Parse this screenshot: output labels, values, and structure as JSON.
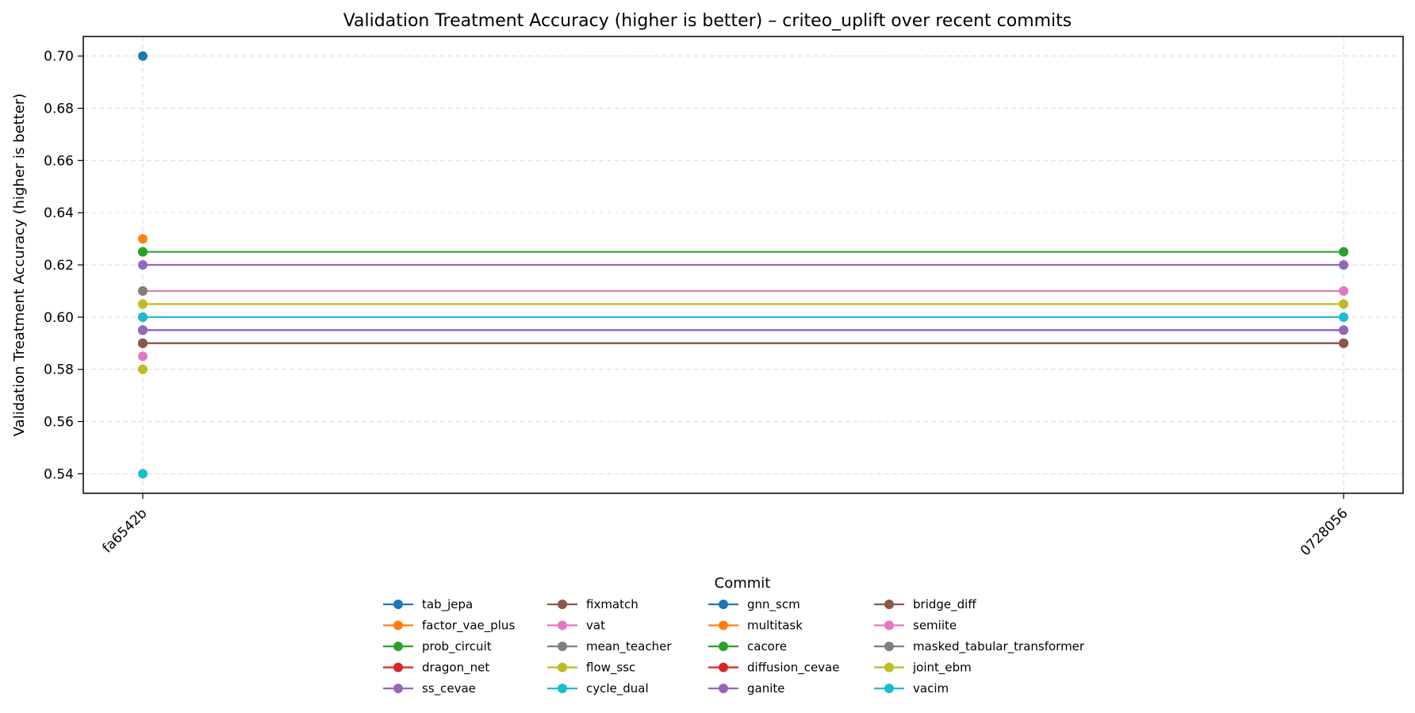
{
  "chart_data": {
    "type": "line",
    "title": "Validation Treatment Accuracy (higher is better) – criteo_uplift over recent commits",
    "xlabel": "",
    "ylabel": "Validation Treatment Accuracy (higher is better)",
    "categories": [
      "fa6542b",
      "0728056"
    ],
    "ylim": [
      0.5325,
      0.7075
    ],
    "yticks": [
      0.54,
      0.56,
      0.58,
      0.6,
      0.62,
      0.64,
      0.66,
      0.68,
      0.7
    ],
    "ytick_labels": [
      "0.54",
      "0.56",
      "0.58",
      "0.60",
      "0.62",
      "0.64",
      "0.66",
      "0.68",
      "0.70"
    ],
    "grid": true,
    "legend_title": "Commit",
    "legend_position": "bottom-center",
    "series": [
      {
        "name": "tab_jepa",
        "color": "#1f77b4",
        "values": [
          0.7,
          null
        ]
      },
      {
        "name": "factor_vae_plus",
        "color": "#ff7f0e",
        "values": [
          0.63,
          null
        ]
      },
      {
        "name": "prob_circuit",
        "color": "#2ca02c",
        "values": [
          0.625,
          0.625
        ]
      },
      {
        "name": "dragon_net",
        "color": "#d62728",
        "values": [
          0.6,
          null
        ]
      },
      {
        "name": "ss_cevae",
        "color": "#9467bd",
        "values": [
          0.62,
          0.62
        ]
      },
      {
        "name": "fixmatch",
        "color": "#8c564b",
        "values": [
          0.59,
          0.59
        ]
      },
      {
        "name": "vat",
        "color": "#e377c2",
        "values": [
          0.585,
          null
        ]
      },
      {
        "name": "mean_teacher",
        "color": "#7f7f7f",
        "values": [
          0.595,
          0.595
        ]
      },
      {
        "name": "flow_ssc",
        "color": "#bcbd22",
        "values": [
          0.58,
          null
        ]
      },
      {
        "name": "cycle_dual",
        "color": "#17becf",
        "values": [
          0.54,
          null
        ]
      },
      {
        "name": "gnn_scm",
        "color": "#1f77b4",
        "values": [
          0.595,
          null
        ]
      },
      {
        "name": "multitask",
        "color": "#ff7f0e",
        "values": [
          0.6,
          null
        ]
      },
      {
        "name": "cacore",
        "color": "#2ca02c",
        "values": [
          0.625,
          null
        ]
      },
      {
        "name": "diffusion_cevae",
        "color": "#d62728",
        "values": [
          0.59,
          null
        ]
      },
      {
        "name": "ganite",
        "color": "#9467bd",
        "values": [
          0.595,
          0.595
        ]
      },
      {
        "name": "bridge_diff",
        "color": "#8c564b",
        "values": [
          0.59,
          0.59
        ]
      },
      {
        "name": "semiite",
        "color": "#e377c2",
        "values": [
          0.61,
          0.61
        ]
      },
      {
        "name": "masked_tabular_transformer",
        "color": "#7f7f7f",
        "values": [
          0.61,
          null
        ]
      },
      {
        "name": "joint_ebm",
        "color": "#bcbd22",
        "values": [
          0.605,
          0.605
        ]
      },
      {
        "name": "vacim",
        "color": "#17becf",
        "values": [
          0.6,
          0.6
        ]
      }
    ]
  }
}
